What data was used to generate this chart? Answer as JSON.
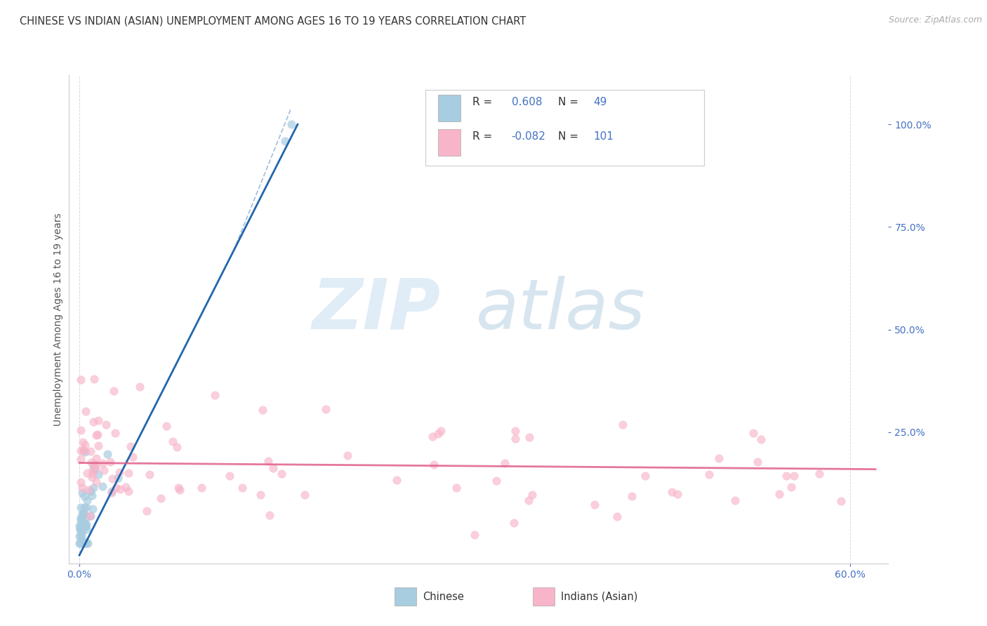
{
  "title": "CHINESE VS INDIAN (ASIAN) UNEMPLOYMENT AMONG AGES 16 TO 19 YEARS CORRELATION CHART",
  "source": "Source: ZipAtlas.com",
  "ylabel_label": "Unemployment Among Ages 16 to 19 years",
  "legend_label1": "Chinese",
  "legend_label2": "Indians (Asian)",
  "R1": "0.608",
  "N1": "49",
  "R2": "-0.082",
  "N2": "101",
  "chinese_color": "#a8cce0",
  "indian_color": "#f8b4c8",
  "regression_chinese_color": "#2166ac",
  "regression_indian_color": "#e0608a",
  "background_color": "#ffffff",
  "grid_color": "#cccccc",
  "watermark_zip_color": "#cce0f0",
  "watermark_atlas_color": "#b0cce0",
  "title_fontsize": 10.5,
  "source_fontsize": 9,
  "axis_tick_color": "#4472c4",
  "ylabel_fontsize": 10,
  "tick_fontsize": 10,
  "xlim": [
    -0.008,
    0.63
  ],
  "ylim": [
    -0.07,
    1.12
  ],
  "x_ticks": [
    0.0,
    0.6
  ],
  "x_tick_labels": [
    "0.0%",
    "60.0%"
  ],
  "y_ticks_right": [
    0.25,
    0.5,
    0.75,
    1.0
  ],
  "y_tick_labels_right": [
    "25.0%",
    "50.0%",
    "75.0%",
    "100.0%"
  ]
}
